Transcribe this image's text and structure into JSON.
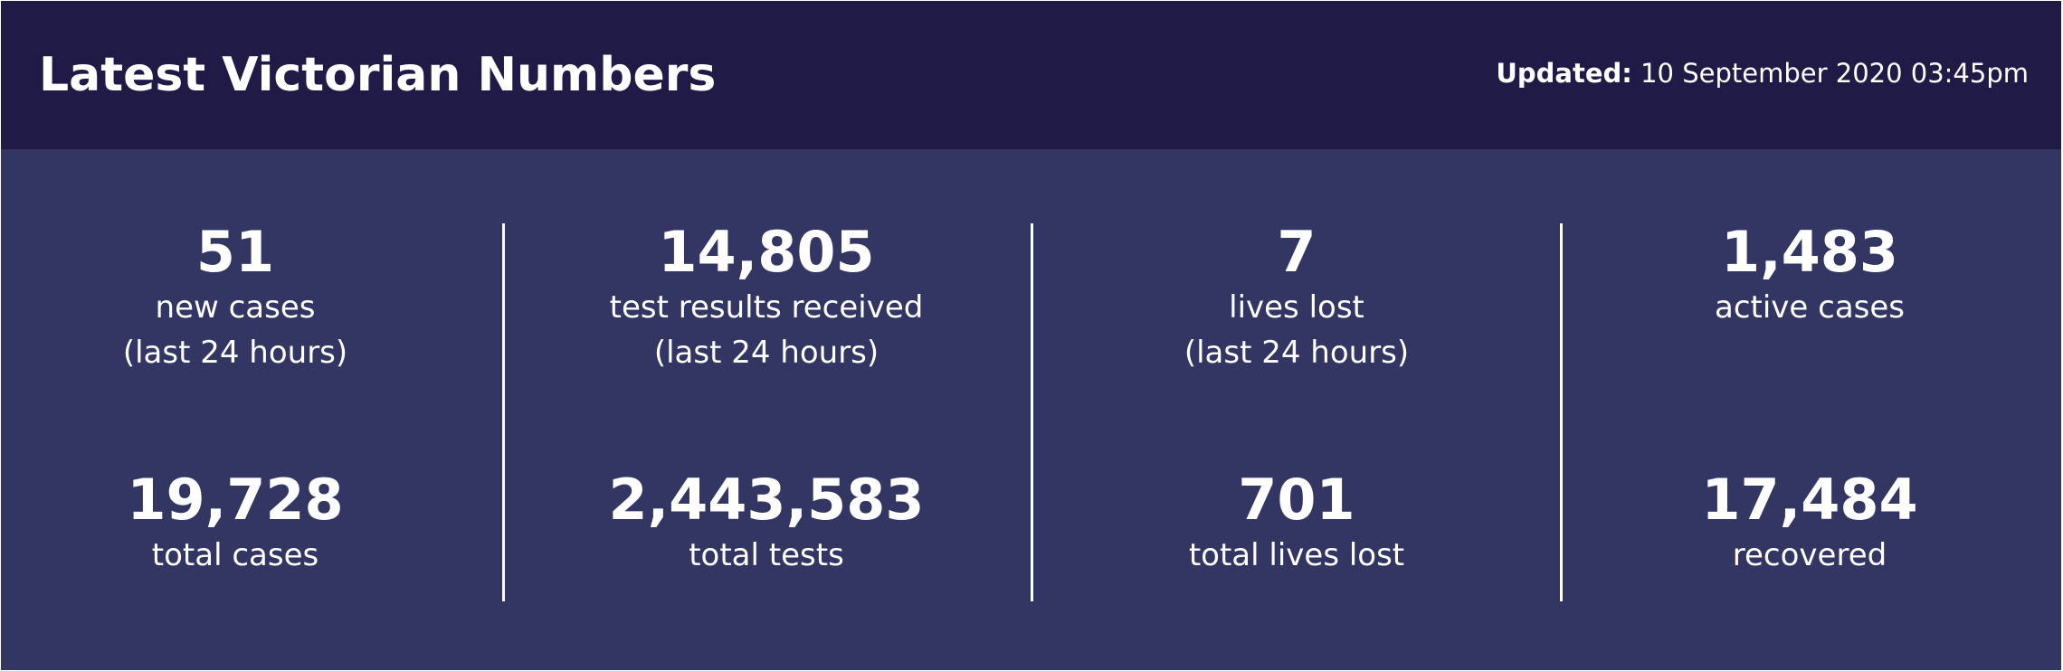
{
  "header": {
    "title": "Latest Victorian Numbers",
    "updated_label": "Updated:",
    "updated_value": " 10 September 2020 03:45pm"
  },
  "stats": [
    {
      "top": {
        "value": "51",
        "label": "new cases",
        "sublabel": "(last 24 hours)"
      },
      "bottom": {
        "value": "19,728",
        "label": "total cases"
      }
    },
    {
      "top": {
        "value": "14,805",
        "label": "test results received",
        "sublabel": "(last 24 hours)"
      },
      "bottom": {
        "value": "2,443,583",
        "label": "total tests"
      }
    },
    {
      "top": {
        "value": "7",
        "label": "lives lost",
        "sublabel": "(last 24 hours)"
      },
      "bottom": {
        "value": "701",
        "label": "total lives lost"
      }
    },
    {
      "top": {
        "value": "1,483",
        "label": "active cases"
      },
      "bottom": {
        "value": "17,484",
        "label": "recovered"
      }
    }
  ],
  "colors": {
    "header_bg": "#201a47",
    "panel_bg": "#333562",
    "text": "#ffffff"
  }
}
